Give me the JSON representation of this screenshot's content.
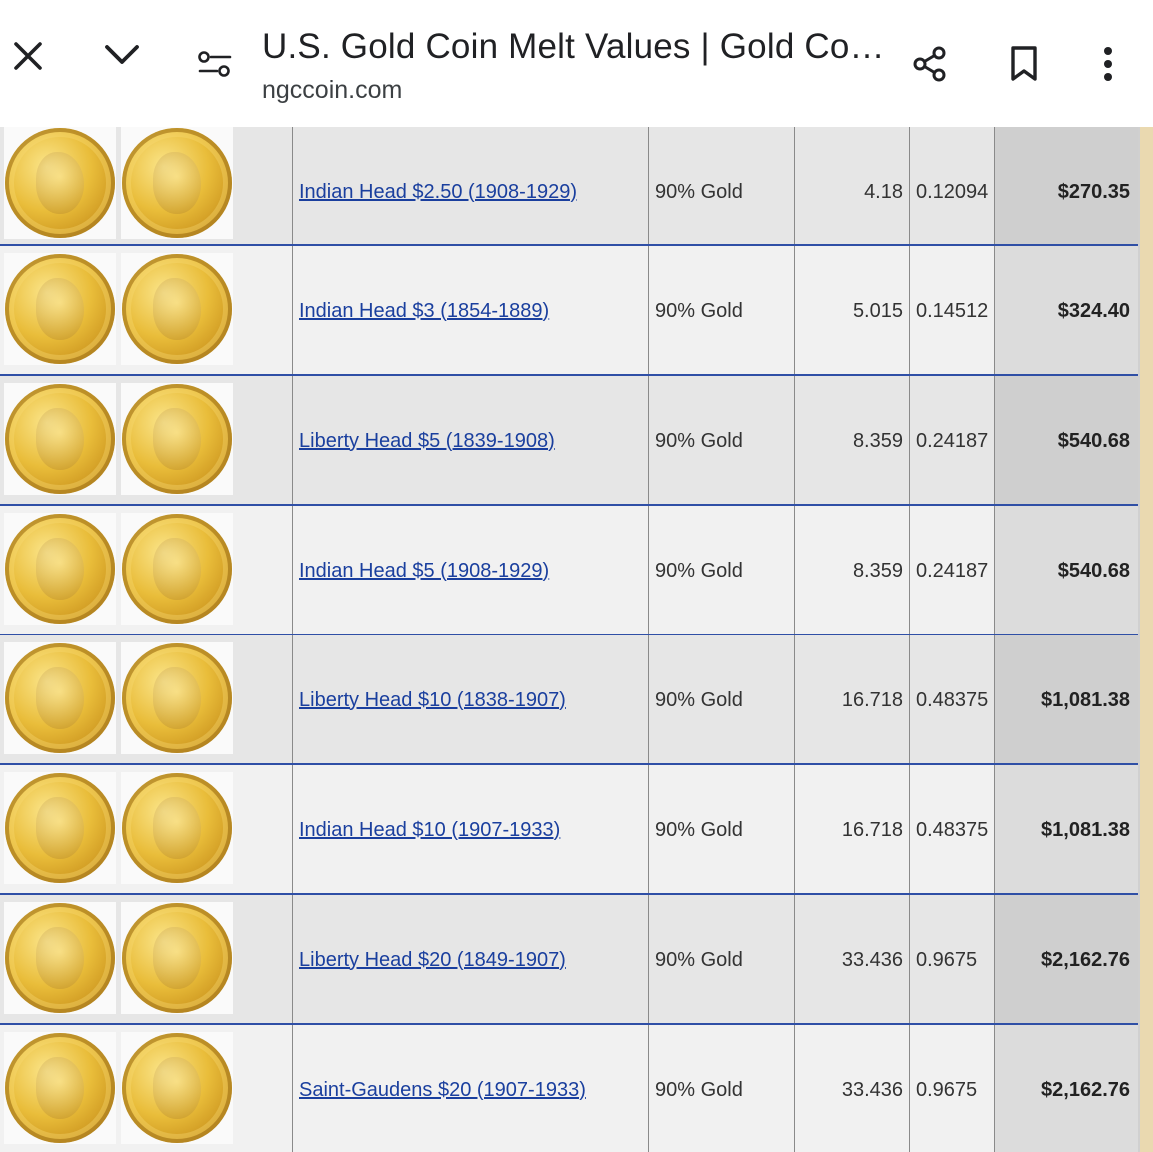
{
  "header": {
    "title": "U.S. Gold Coin Melt Values | Gold Co…",
    "domain": "ngccoin.com",
    "icons": [
      "close-icon",
      "chevron-down-icon",
      "page-info-icon",
      "share-icon",
      "bookmark-icon",
      "more-vert-icon"
    ]
  },
  "colors": {
    "link": "#1a3f9e",
    "row_divider": "#2f4fa6",
    "row_odd": "#e6e6e6",
    "row_even": "#f1f1f1"
  },
  "coins": [
    {
      "name": "Indian Head $2.50 (1908-1929)",
      "composition": "90% Gold",
      "weight": "4.18",
      "gold_oz": "0.12094",
      "melt_value": "$270.35"
    },
    {
      "name": "Indian Head $3 (1854-1889)",
      "composition": "90% Gold",
      "weight": "5.015",
      "gold_oz": "0.14512",
      "melt_value": "$324.40"
    },
    {
      "name": "Liberty Head $5 (1839-1908)",
      "composition": "90% Gold",
      "weight": "8.359",
      "gold_oz": "0.24187",
      "melt_value": "$540.68"
    },
    {
      "name": "Indian Head $5 (1908-1929)",
      "composition": "90% Gold",
      "weight": "8.359",
      "gold_oz": "0.24187",
      "melt_value": "$540.68"
    },
    {
      "name": "Liberty Head $10 (1838-1907)",
      "composition": "90% Gold",
      "weight": "16.718",
      "gold_oz": "0.48375",
      "melt_value": "$1,081.38"
    },
    {
      "name": "Indian Head $10 (1907-1933)",
      "composition": "90% Gold",
      "weight": "16.718",
      "gold_oz": "0.48375",
      "melt_value": "$1,081.38"
    },
    {
      "name": "Liberty Head $20 (1849-1907)",
      "composition": "90% Gold",
      "weight": "33.436",
      "gold_oz": "0.9675",
      "melt_value": "$2,162.76"
    },
    {
      "name": "Saint-Gaudens $20 (1907-1933)",
      "composition": "90% Gold",
      "weight": "33.436",
      "gold_oz": "0.9675",
      "melt_value": "$2,162.76"
    }
  ]
}
